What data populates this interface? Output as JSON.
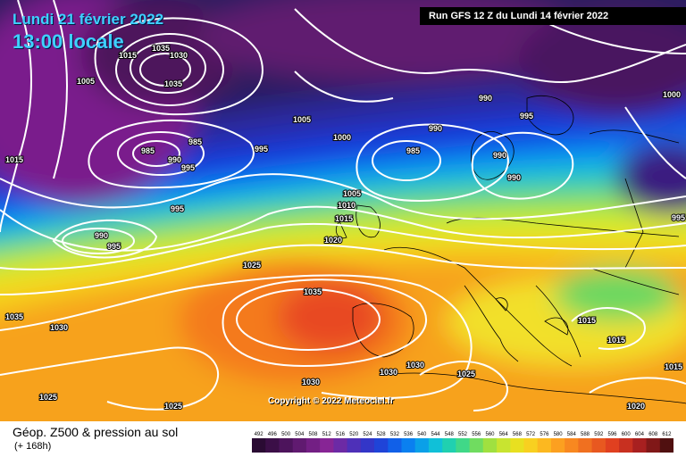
{
  "header": {
    "date_line": "Lundi 21 février 2022",
    "time_line": "13:00 locale",
    "run_info": "Run GFS 12 Z du Lundi 14 février 2022"
  },
  "copyright": "Copyright © 2022 Meteociel.fr",
  "footer": {
    "title": "Géop. Z500 & pression au sol",
    "subtitle": "(+ 168h)"
  },
  "isobar_labels": {
    "l1": "1005",
    "l2": "1015",
    "l3": "1035",
    "l4": "1035",
    "l5": "1030",
    "l6": "1005",
    "l7": "985",
    "l8": "985",
    "l9": "990",
    "l10": "995",
    "l11": "995",
    "l12": "1015",
    "l13": "995",
    "l14": "990",
    "l15": "995",
    "l16": "1000",
    "l17": "990",
    "l18": "985",
    "l19": "990",
    "l20": "990",
    "l21": "995",
    "l22": "990",
    "l23": "1000",
    "l24": "995",
    "l25": "1005",
    "l26": "1010",
    "l27": "1015",
    "l28": "1020",
    "l29": "1025",
    "l30": "1035",
    "l31": "1035",
    "l32": "1030",
    "l33": "1030",
    "l34": "1030",
    "l35": "1030",
    "l36": "1025",
    "l37": "1025",
    "l38": "1025",
    "l39": "1015",
    "l40": "1015",
    "l41": "1020",
    "l42": "1015"
  },
  "scale": {
    "labels": [
      "492",
      "496",
      "500",
      "504",
      "508",
      "512",
      "516",
      "520",
      "524",
      "528",
      "532",
      "536",
      "540",
      "544",
      "548",
      "552",
      "556",
      "560",
      "564",
      "568",
      "572",
      "576",
      "580",
      "584",
      "588",
      "592",
      "596",
      "600",
      "604",
      "608",
      "612"
    ],
    "colors": [
      "#2a0b33",
      "#3b0f47",
      "#4d145c",
      "#601a70",
      "#731f84",
      "#872595",
      "#6c2aa5",
      "#4e30b8",
      "#3336c8",
      "#1f44d8",
      "#1160e8",
      "#0a80f0",
      "#0aa0e8",
      "#10c0d8",
      "#20d0b0",
      "#40d888",
      "#70dc60",
      "#a0e040",
      "#c8e430",
      "#e8e020",
      "#f8d020",
      "#fcb820",
      "#fca020",
      "#f88820",
      "#f07020",
      "#e85820",
      "#e04020",
      "#c83020",
      "#a82020",
      "#801818",
      "#501010"
    ]
  }
}
